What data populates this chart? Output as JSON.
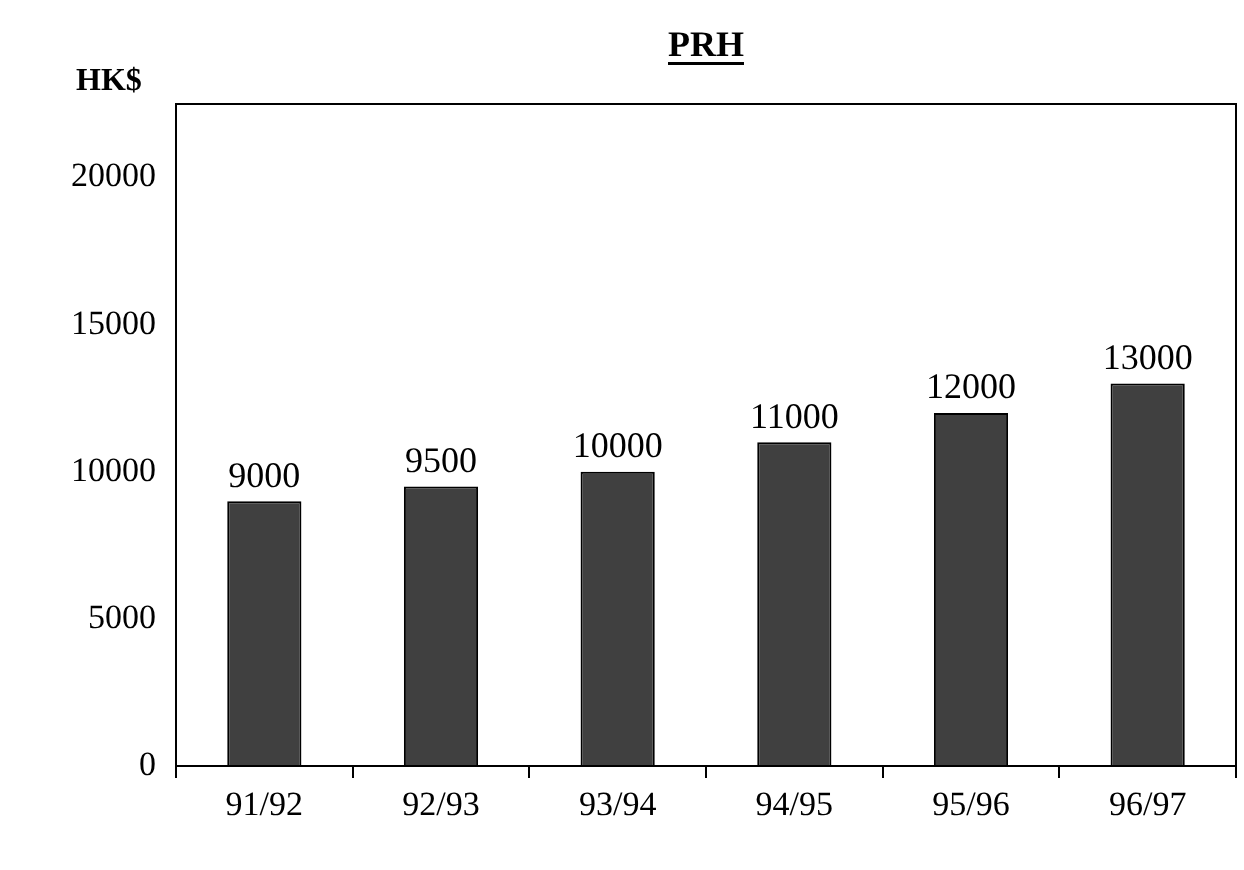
{
  "chart_data": {
    "type": "bar",
    "title": "PRH",
    "ylabel": "HK$",
    "categories": [
      "91/92",
      "92/93",
      "93/94",
      "94/95",
      "95/96",
      "96/97"
    ],
    "values": [
      9000,
      9500,
      10000,
      11000,
      12000,
      13000
    ],
    "color": "#404040",
    "ylim": [
      0,
      22500
    ],
    "yticks": [
      0,
      5000,
      10000,
      15000,
      20000
    ],
    "data_labels": true
  }
}
